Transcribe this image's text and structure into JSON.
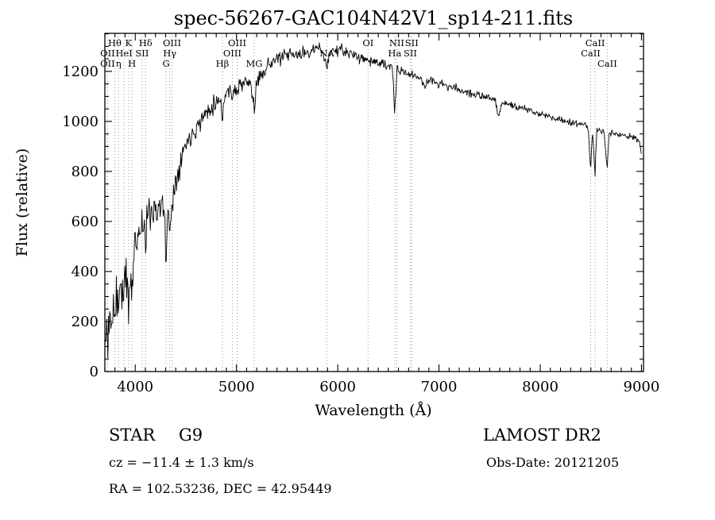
{
  "chart_data": {
    "type": "line",
    "title": "spec-56267-GAC104N42V1_sp14-211.fits",
    "xlabel": "Wavelength (Å)",
    "ylabel": "Flux (relative)",
    "xlim": [
      3700,
      9020
    ],
    "ylim": [
      0,
      1352
    ],
    "x_range": [
      3700,
      9000
    ],
    "step": 6,
    "seed": 11,
    "grid": false,
    "legend": "none",
    "x_ticks": [
      4000,
      5000,
      6000,
      7000,
      8000,
      9000
    ],
    "y_ticks": [
      0,
      200,
      400,
      600,
      800,
      1000,
      1200
    ],
    "envelope_points": [
      [
        3700,
        110
      ],
      [
        3705,
        40
      ],
      [
        3715,
        210
      ],
      [
        3725,
        90
      ],
      [
        3735,
        250
      ],
      [
        3745,
        150
      ],
      [
        3760,
        230
      ],
      [
        3775,
        160
      ],
      [
        3790,
        290
      ],
      [
        3800,
        230
      ],
      [
        3815,
        320
      ],
      [
        3830,
        260
      ],
      [
        3845,
        340
      ],
      [
        3860,
        290
      ],
      [
        3875,
        360
      ],
      [
        3890,
        310
      ],
      [
        3905,
        380
      ],
      [
        3920,
        340
      ],
      [
        3934,
        240
      ],
      [
        3950,
        400
      ],
      [
        3968,
        290
      ],
      [
        3985,
        470
      ],
      [
        4000,
        520
      ],
      [
        4020,
        545
      ],
      [
        4045,
        570
      ],
      [
        4070,
        600
      ],
      [
        4090,
        575
      ],
      [
        4102,
        495
      ],
      [
        4115,
        610
      ],
      [
        4140,
        635
      ],
      [
        4170,
        650
      ],
      [
        4200,
        655
      ],
      [
        4230,
        650
      ],
      [
        4260,
        658
      ],
      [
        4290,
        645
      ],
      [
        4303,
        420
      ],
      [
        4316,
        600
      ],
      [
        4330,
        620
      ],
      [
        4341,
        545
      ],
      [
        4355,
        660
      ],
      [
        4375,
        700
      ],
      [
        4400,
        760
      ],
      [
        4430,
        820
      ],
      [
        4460,
        865
      ],
      [
        4490,
        900
      ],
      [
        4520,
        925
      ],
      [
        4550,
        945
      ],
      [
        4580,
        965
      ],
      [
        4610,
        980
      ],
      [
        4650,
        1005
      ],
      [
        4690,
        1030
      ],
      [
        4730,
        1050
      ],
      [
        4770,
        1068
      ],
      [
        4810,
        1082
      ],
      [
        4840,
        1090
      ],
      [
        4861,
        1015
      ],
      [
        4880,
        1100
      ],
      [
        4910,
        1115
      ],
      [
        4940,
        1128
      ],
      [
        4959,
        1100
      ],
      [
        4980,
        1140
      ],
      [
        5007,
        1110
      ],
      [
        5030,
        1150
      ],
      [
        5060,
        1148
      ],
      [
        5100,
        1155
      ],
      [
        5140,
        1150
      ],
      [
        5165,
        1080
      ],
      [
        5178,
        1050
      ],
      [
        5195,
        1130
      ],
      [
        5220,
        1175
      ],
      [
        5260,
        1200
      ],
      [
        5300,
        1220
      ],
      [
        5340,
        1235
      ],
      [
        5380,
        1245
      ],
      [
        5420,
        1252
      ],
      [
        5460,
        1257
      ],
      [
        5500,
        1262
      ],
      [
        5540,
        1268
      ],
      [
        5580,
        1262
      ],
      [
        5620,
        1268
      ],
      [
        5660,
        1272
      ],
      [
        5700,
        1278
      ],
      [
        5740,
        1282
      ],
      [
        5780,
        1288
      ],
      [
        5820,
        1290
      ],
      [
        5855,
        1282
      ],
      [
        5893,
        1205
      ],
      [
        5915,
        1275
      ],
      [
        5950,
        1282
      ],
      [
        6000,
        1286
      ],
      [
        6050,
        1282
      ],
      [
        6100,
        1274
      ],
      [
        6150,
        1266
      ],
      [
        6200,
        1258
      ],
      [
        6250,
        1252
      ],
      [
        6300,
        1244
      ],
      [
        6350,
        1240
      ],
      [
        6400,
        1234
      ],
      [
        6450,
        1228
      ],
      [
        6500,
        1220
      ],
      [
        6540,
        1212
      ],
      [
        6563,
        1040
      ],
      [
        6585,
        1202
      ],
      [
        6620,
        1200
      ],
      [
        6660,
        1196
      ],
      [
        6700,
        1190
      ],
      [
        6740,
        1184
      ],
      [
        6780,
        1178
      ],
      [
        6830,
        1172
      ],
      [
        6862,
        1130
      ],
      [
        6880,
        1165
      ],
      [
        6930,
        1160
      ],
      [
        6980,
        1154
      ],
      [
        7030,
        1148
      ],
      [
        7090,
        1140
      ],
      [
        7150,
        1133
      ],
      [
        7210,
        1126
      ],
      [
        7270,
        1118
      ],
      [
        7330,
        1110
      ],
      [
        7390,
        1104
      ],
      [
        7450,
        1097
      ],
      [
        7510,
        1090
      ],
      [
        7560,
        1084
      ],
      [
        7594,
        1015
      ],
      [
        7615,
        1076
      ],
      [
        7660,
        1072
      ],
      [
        7720,
        1064
      ],
      [
        7780,
        1056
      ],
      [
        7840,
        1049
      ],
      [
        7900,
        1042
      ],
      [
        7960,
        1035
      ],
      [
        8020,
        1028
      ],
      [
        8080,
        1021
      ],
      [
        8140,
        1014
      ],
      [
        8200,
        1008
      ],
      [
        8260,
        1000
      ],
      [
        8320,
        994
      ],
      [
        8380,
        988
      ],
      [
        8440,
        982
      ],
      [
        8475,
        978
      ],
      [
        8498,
        800
      ],
      [
        8515,
        972
      ],
      [
        8542,
        780
      ],
      [
        8558,
        968
      ],
      [
        8600,
        962
      ],
      [
        8630,
        958
      ],
      [
        8662,
        810
      ],
      [
        8680,
        955
      ],
      [
        8730,
        950
      ],
      [
        8780,
        946
      ],
      [
        8830,
        942
      ],
      [
        8880,
        940
      ],
      [
        8920,
        936
      ],
      [
        8955,
        930
      ],
      [
        8980,
        920
      ],
      [
        9000,
        870
      ]
    ],
    "noise_sigma": [
      [
        3700,
        95
      ],
      [
        3800,
        90
      ],
      [
        3900,
        80
      ],
      [
        4000,
        58
      ],
      [
        4150,
        48
      ],
      [
        4300,
        42
      ],
      [
        4500,
        30
      ],
      [
        4700,
        26
      ],
      [
        5000,
        22
      ],
      [
        5300,
        20
      ],
      [
        5600,
        18
      ],
      [
        6000,
        16
      ],
      [
        6400,
        14
      ],
      [
        6800,
        13
      ],
      [
        7200,
        12
      ],
      [
        7600,
        11
      ],
      [
        8000,
        9
      ],
      [
        8400,
        9
      ],
      [
        8800,
        9
      ],
      [
        9000,
        10
      ]
    ],
    "spectral_lines": [
      {
        "wl": 3727,
        "label": "OII",
        "row": 1
      },
      {
        "wl": 3727,
        "label": "OII",
        "row": 2
      },
      {
        "wl": 3798,
        "label": "Hθ",
        "row": 0
      },
      {
        "wl": 3835,
        "label": "η",
        "row": 2
      },
      {
        "wl": 3889,
        "label": "HeI",
        "row": 1
      },
      {
        "wl": 3934,
        "label": "K",
        "row": 0
      },
      {
        "wl": 3968,
        "label": "H",
        "row": 2
      },
      {
        "wl": 4068,
        "label": "SII",
        "row": 1
      },
      {
        "wl": 4102,
        "label": "Hδ",
        "row": 0
      },
      {
        "wl": 4305,
        "label": "G",
        "row": 2
      },
      {
        "wl": 4341,
        "label": "Hγ",
        "row": 1
      },
      {
        "wl": 4363,
        "label": "OIII",
        "row": 0
      },
      {
        "wl": 4861,
        "label": "Hβ",
        "row": 2
      },
      {
        "wl": 4959,
        "label": "OIII",
        "row": 1
      },
      {
        "wl": 5007,
        "label": "OIII",
        "row": 0
      },
      {
        "wl": 5175,
        "label": "MG",
        "row": 2
      },
      {
        "wl": 5893,
        "label": "NA",
        "row": 1
      },
      {
        "wl": 6300,
        "label": "OI",
        "row": 0
      },
      {
        "wl": 6563,
        "label": "Ha",
        "row": 1
      },
      {
        "wl": 6583,
        "label": "NII",
        "row": 0
      },
      {
        "wl": 6717,
        "label": "SII",
        "row": 1
      },
      {
        "wl": 6731,
        "label": "SII",
        "row": 0
      },
      {
        "wl": 8498,
        "label": "CaII",
        "row": 1
      },
      {
        "wl": 8542,
        "label": "CaII",
        "row": 0
      },
      {
        "wl": 8662,
        "label": "CaII",
        "row": 2
      }
    ]
  },
  "footer": {
    "class_label": "STAR",
    "subclass": "G9",
    "survey": "LAMOST DR2",
    "cz": "cz = −11.4 ± 1.3 km/s",
    "obs_date": "Obs-Date: 20121205",
    "radec": "RA = 102.53236, DEC =  42.95449"
  }
}
